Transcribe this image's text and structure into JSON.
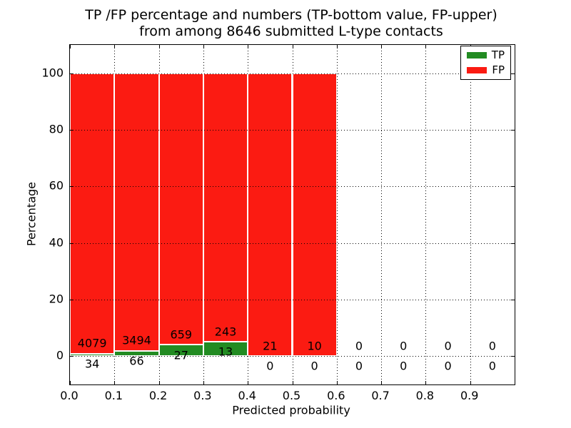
{
  "title": {
    "line1": "TP /FP percentage and numbers (TP-bottom value, FP-upper)",
    "line2": "from among 8646 submitted L-type contacts"
  },
  "chart_data": {
    "type": "bar",
    "stacked": true,
    "normalized_to_percent": true,
    "total_contacts": 8646,
    "xlabel": "Predicted probability",
    "ylabel": "Percentage",
    "bin_edges": [
      0.0,
      0.1,
      0.2,
      0.3,
      0.4,
      0.5,
      0.6,
      0.7,
      0.8,
      0.9,
      1.0
    ],
    "series": [
      {
        "name": "TP",
        "color": "#228b22",
        "counts": [
          34,
          66,
          27,
          13,
          0,
          0,
          0,
          0,
          0,
          0
        ]
      },
      {
        "name": "FP",
        "color": "#fb1b12",
        "counts": [
          4079,
          3494,
          659,
          243,
          21,
          10,
          0,
          0,
          0,
          0
        ]
      }
    ],
    "bar_total_percent_when_nonempty": 100,
    "x_tick_values": [
      0.0,
      0.1,
      0.2,
      0.3,
      0.4,
      0.5,
      0.6,
      0.7,
      0.8,
      0.9
    ],
    "x_tick_labels": [
      "0.0",
      "0.1",
      "0.2",
      "0.3",
      "0.4",
      "0.5",
      "0.6",
      "0.7",
      "0.8",
      "0.9"
    ],
    "y_tick_values": [
      0,
      20,
      40,
      60,
      80,
      100
    ],
    "y_tick_labels": [
      "0",
      "20",
      "40",
      "60",
      "80",
      "100"
    ],
    "xlim": [
      0,
      1
    ],
    "ylim": [
      -10.1,
      110.1
    ],
    "grid": "dotted",
    "grid_color": "#000000",
    "bar_edge_color": "#ffffff",
    "legend_position": "upper right"
  }
}
